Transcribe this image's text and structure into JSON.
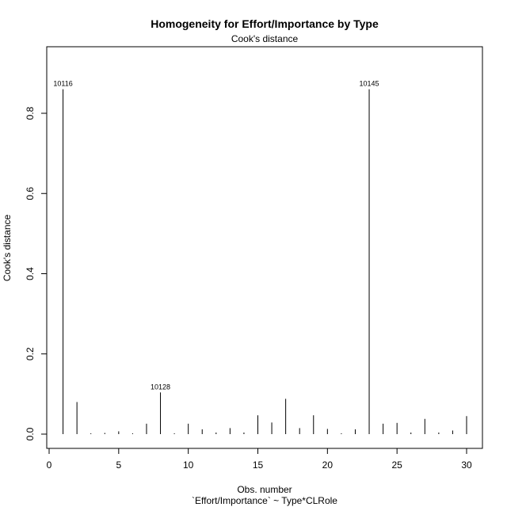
{
  "chart_data": {
    "type": "bar",
    "title": "Homogeneity for Effort/Importance by Type",
    "subtitle": "Cook's distance",
    "xlabel": "Obs. number",
    "xlabel2": "`Effort/Importance` ~ Type*CLRole",
    "ylabel": "Cook's distance",
    "xlim": [
      0,
      30.8
    ],
    "ylim": [
      0,
      0.9
    ],
    "x_ticks": [
      0,
      5,
      10,
      15,
      20,
      25,
      30
    ],
    "y_ticks": [
      0.0,
      0.2,
      0.4,
      0.6,
      0.8
    ],
    "x_tick_labels": [
      "0",
      "5",
      "10",
      "15",
      "20",
      "25",
      "30"
    ],
    "y_tick_labels": [
      "0.0",
      "0.2",
      "0.4",
      "0.6",
      "0.8"
    ],
    "grid": false,
    "x": [
      1,
      2,
      3,
      4,
      5,
      6,
      7,
      8,
      9,
      10,
      11,
      12,
      13,
      14,
      15,
      16,
      17,
      18,
      19,
      20,
      21,
      22,
      23,
      24,
      25,
      26,
      27,
      28,
      29,
      30
    ],
    "values": [
      0.86,
      0.08,
      0.002,
      0.003,
      0.007,
      0.002,
      0.026,
      0.104,
      0.002,
      0.026,
      0.012,
      0.004,
      0.015,
      0.004,
      0.047,
      0.029,
      0.088,
      0.015,
      0.047,
      0.013,
      0.002,
      0.012,
      0.86,
      0.026,
      0.028,
      0.004,
      0.038,
      0.004,
      0.009,
      0.045
    ],
    "annotations": [
      {
        "x": 1,
        "text": "10116"
      },
      {
        "x": 8,
        "text": "10128"
      },
      {
        "x": 23,
        "text": "10145"
      }
    ]
  }
}
